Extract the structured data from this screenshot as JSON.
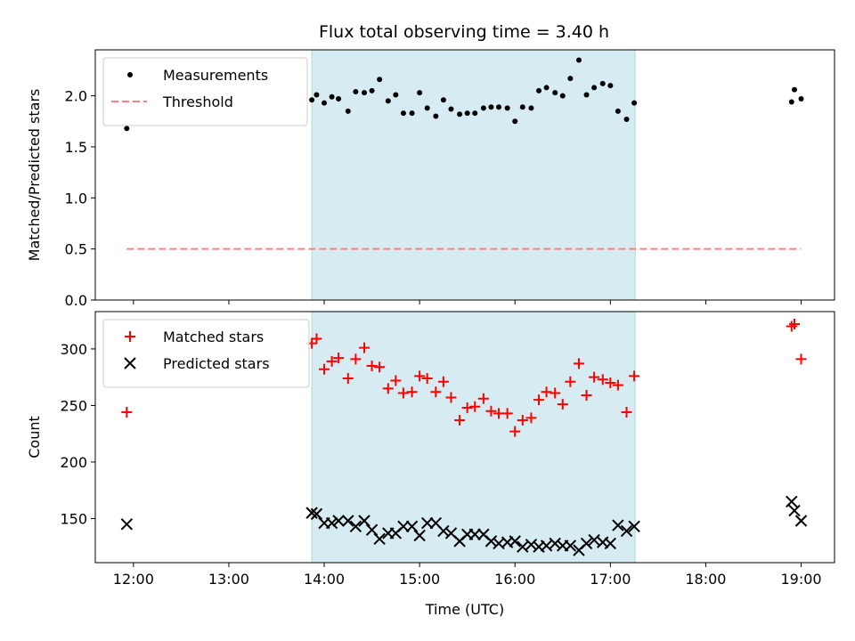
{
  "chart_data": [
    {
      "type": "scatter",
      "title": "Flux total observing time = 3.40 h",
      "xlabel": "",
      "ylabel": "Matched/Predicted stars",
      "ylim": [
        0,
        2.45
      ],
      "yticks": [
        0.0,
        0.5,
        1.0,
        1.5,
        2.0
      ],
      "ytick_labels": [
        "0.0",
        "0.5",
        "1.0",
        "1.5",
        "2.0"
      ],
      "xlim": [
        11.6,
        19.35
      ],
      "xticks": [
        12,
        13,
        14,
        15,
        16,
        17,
        18,
        19
      ],
      "xtick_labels": [],
      "shaded_region": {
        "x_start": 13.87,
        "x_end": 17.26,
        "color": "#add8e6"
      },
      "series": [
        {
          "name": "Measurements",
          "marker": "dot",
          "color": "#000000",
          "x": [
            11.93,
            13.87,
            13.92,
            14.0,
            14.08,
            14.15,
            14.25,
            14.33,
            14.42,
            14.5,
            14.58,
            14.67,
            14.75,
            14.83,
            14.92,
            15.0,
            15.08,
            15.17,
            15.25,
            15.33,
            15.42,
            15.5,
            15.58,
            15.67,
            15.75,
            15.83,
            15.92,
            16.0,
            16.08,
            16.17,
            16.25,
            16.33,
            16.42,
            16.5,
            16.58,
            16.67,
            16.75,
            16.83,
            16.92,
            17.0,
            17.08,
            17.17,
            17.25,
            18.9,
            18.93,
            19.0
          ],
          "y": [
            1.68,
            1.96,
            2.01,
            1.93,
            1.99,
            1.97,
            1.85,
            2.04,
            2.03,
            2.05,
            2.16,
            1.95,
            2.01,
            1.83,
            1.83,
            2.03,
            1.88,
            1.8,
            1.96,
            1.87,
            1.82,
            1.83,
            1.83,
            1.88,
            1.89,
            1.89,
            1.88,
            1.75,
            1.89,
            1.88,
            2.05,
            2.08,
            2.03,
            2.0,
            2.17,
            2.35,
            2.01,
            2.08,
            2.12,
            2.1,
            1.85,
            1.77,
            1.93,
            1.94,
            2.06,
            1.97
          ]
        },
        {
          "name": "Threshold",
          "marker": "dashed-line",
          "color": "#ff7f7f",
          "x": [
            11.93,
            19.0
          ],
          "y": [
            0.5,
            0.5
          ]
        }
      ],
      "legend_position": "upper left"
    },
    {
      "type": "scatter",
      "title": "",
      "xlabel": "Time (UTC)",
      "ylabel": "Count",
      "ylim": [
        111,
        333
      ],
      "yticks": [
        150,
        200,
        250,
        300
      ],
      "ytick_labels": [
        "150",
        "200",
        "250",
        "300"
      ],
      "xlim": [
        11.6,
        19.35
      ],
      "xticks": [
        12,
        13,
        14,
        15,
        16,
        17,
        18,
        19
      ],
      "xtick_labels": [
        "12:00",
        "13:00",
        "14:00",
        "15:00",
        "16:00",
        "17:00",
        "18:00",
        "19:00"
      ],
      "shaded_region": {
        "x_start": 13.87,
        "x_end": 17.26,
        "color": "#add8e6"
      },
      "series": [
        {
          "name": "Matched stars",
          "marker": "plus",
          "color": "#ff0000",
          "x": [
            11.93,
            13.87,
            13.92,
            14.0,
            14.08,
            14.15,
            14.25,
            14.33,
            14.42,
            14.5,
            14.58,
            14.67,
            14.75,
            14.83,
            14.92,
            15.0,
            15.08,
            15.17,
            15.25,
            15.33,
            15.42,
            15.5,
            15.58,
            15.67,
            15.75,
            15.83,
            15.92,
            16.0,
            16.08,
            16.17,
            16.25,
            16.33,
            16.42,
            16.5,
            16.58,
            16.67,
            16.75,
            16.83,
            16.92,
            17.0,
            17.08,
            17.17,
            17.25,
            18.9,
            18.93,
            19.0
          ],
          "y": [
            244,
            305,
            309,
            282,
            289,
            292,
            274,
            291,
            301,
            285,
            284,
            265,
            272,
            261,
            262,
            276,
            274,
            262,
            271,
            257,
            237,
            248,
            249,
            256,
            245,
            243,
            243,
            227,
            237,
            239,
            255,
            262,
            261,
            251,
            271,
            287,
            259,
            275,
            273,
            270,
            268,
            244,
            276,
            320,
            322,
            291
          ]
        },
        {
          "name": "Predicted stars",
          "marker": "x",
          "color": "#000000",
          "x": [
            11.93,
            13.87,
            13.92,
            14.0,
            14.08,
            14.15,
            14.25,
            14.33,
            14.42,
            14.5,
            14.58,
            14.67,
            14.75,
            14.83,
            14.92,
            15.0,
            15.08,
            15.17,
            15.25,
            15.33,
            15.42,
            15.5,
            15.58,
            15.67,
            15.75,
            15.83,
            15.92,
            16.0,
            16.08,
            16.17,
            16.25,
            16.33,
            16.42,
            16.5,
            16.58,
            16.67,
            16.75,
            16.83,
            16.92,
            17.0,
            17.08,
            17.17,
            17.25,
            18.9,
            18.93,
            19.0
          ],
          "y": [
            145,
            155,
            154,
            146,
            146,
            148,
            148,
            143,
            148,
            140,
            132,
            137,
            137,
            143,
            143,
            135,
            146,
            146,
            139,
            137,
            130,
            136,
            136,
            136,
            130,
            128,
            129,
            130,
            125,
            127,
            125,
            126,
            128,
            126,
            126,
            122,
            128,
            131,
            129,
            128,
            144,
            139,
            143,
            165,
            157,
            148
          ]
        }
      ],
      "legend_position": "upper left"
    }
  ]
}
